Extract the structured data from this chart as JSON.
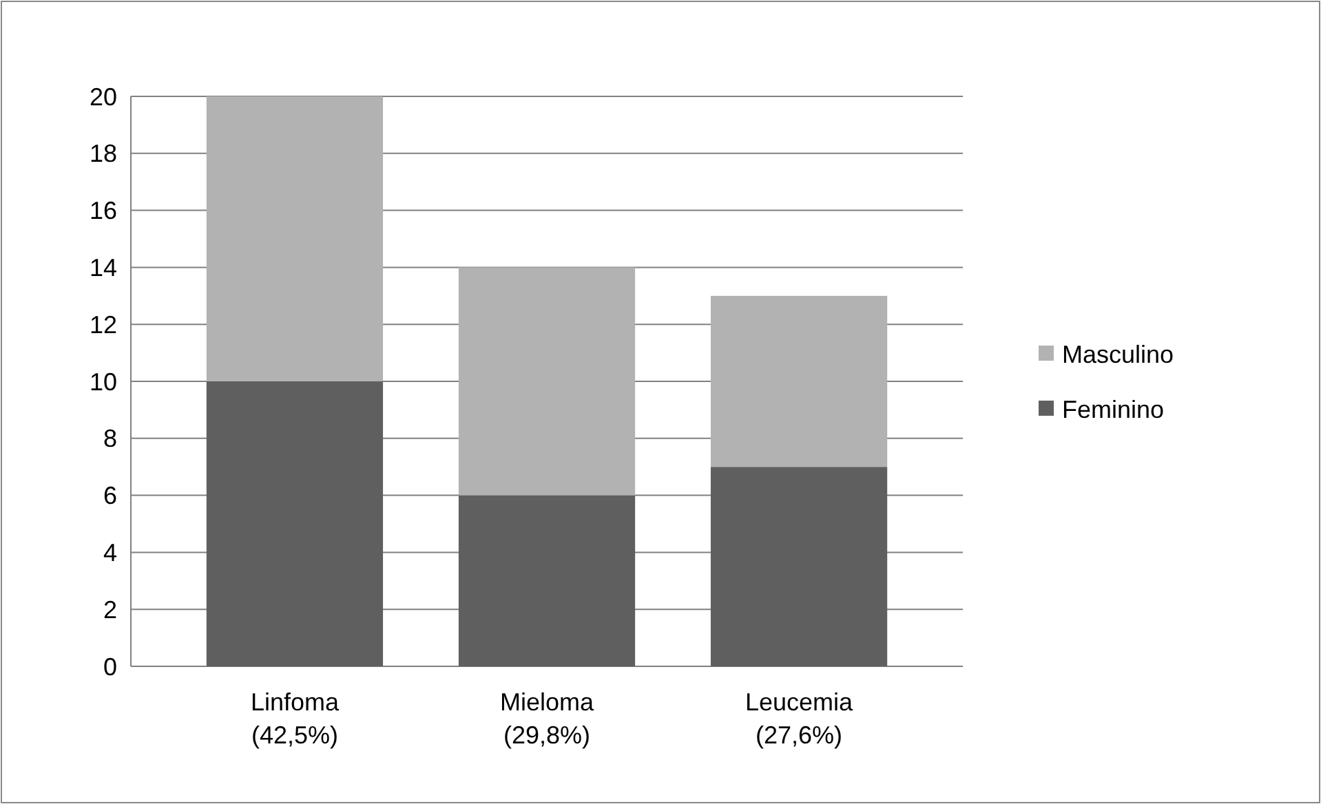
{
  "chart_data": {
    "type": "bar",
    "stacked": true,
    "categories": [
      "Linfoma\n(42,5%)",
      "Mieloma\n(29,8%)",
      "Leucemia\n(27,6%)"
    ],
    "series": [
      {
        "name": "Feminino",
        "color": "#5f5f5f",
        "values": [
          10,
          6,
          7
        ]
      },
      {
        "name": "Masculino",
        "color": "#b2b2b2",
        "values": [
          10,
          8,
          6
        ]
      }
    ],
    "ylim": [
      0,
      20
    ],
    "yticks": [
      0,
      2,
      4,
      6,
      8,
      10,
      12,
      14,
      16,
      18,
      20
    ],
    "grid": "y",
    "legend": "right"
  }
}
